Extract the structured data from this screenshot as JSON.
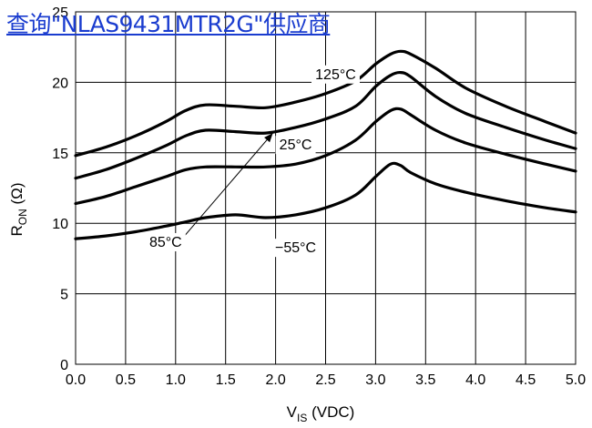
{
  "header": {
    "link_text": "查询\"NLAS9431MTR2G\"供应商"
  },
  "colors": {
    "link": "#1a3ccf",
    "curve": "#000000",
    "grid": "#000000"
  },
  "chart_data": {
    "type": "line",
    "title": "",
    "xlabel": "V",
    "xlabel_sub": "IS",
    "xlabel_unit": " (VDC)",
    "ylabel": "R",
    "ylabel_sub": "ON",
    "ylabel_unit": " (Ω)",
    "xlim": [
      0.0,
      5.0
    ],
    "ylim": [
      0,
      25
    ],
    "x_ticks": [
      "0.0",
      "0.5",
      "1.0",
      "1.5",
      "2.0",
      "2.5",
      "3.0",
      "3.5",
      "4.0",
      "4.5",
      "5.0"
    ],
    "y_ticks": [
      "0",
      "5",
      "10",
      "15",
      "20",
      "25"
    ],
    "grid": true,
    "series": [
      {
        "name": "125°C",
        "x": [
          0.0,
          0.3,
          0.6,
          0.9,
          1.1,
          1.3,
          1.6,
          1.9,
          2.2,
          2.5,
          2.8,
          3.0,
          3.15,
          3.25,
          3.35,
          3.6,
          3.9,
          4.3,
          4.7,
          5.0
        ],
        "y": [
          14.8,
          15.4,
          16.2,
          17.2,
          18.0,
          18.4,
          18.3,
          18.2,
          18.6,
          19.2,
          20.1,
          21.3,
          22.0,
          22.2,
          22.0,
          21.0,
          19.6,
          18.3,
          17.2,
          16.4
        ]
      },
      {
        "name": "85°C",
        "x": [
          0.0,
          0.3,
          0.6,
          0.9,
          1.1,
          1.3,
          1.6,
          1.9,
          2.2,
          2.5,
          2.8,
          3.0,
          3.15,
          3.25,
          3.35,
          3.6,
          3.9,
          4.3,
          4.7,
          5.0
        ],
        "y": [
          13.2,
          13.8,
          14.6,
          15.5,
          16.2,
          16.6,
          16.5,
          16.4,
          16.8,
          17.4,
          18.3,
          19.7,
          20.5,
          20.7,
          20.4,
          19.0,
          17.8,
          16.8,
          15.9,
          15.3
        ]
      },
      {
        "name": "25°C",
        "x": [
          0.0,
          0.3,
          0.6,
          0.9,
          1.1,
          1.3,
          1.6,
          1.9,
          2.2,
          2.5,
          2.8,
          3.0,
          3.15,
          3.25,
          3.35,
          3.6,
          3.9,
          4.3,
          4.7,
          5.0
        ],
        "y": [
          11.4,
          11.9,
          12.6,
          13.3,
          13.8,
          14.0,
          14.0,
          14.0,
          14.2,
          14.8,
          15.9,
          17.2,
          18.0,
          18.1,
          17.7,
          16.6,
          15.7,
          14.9,
          14.2,
          13.7
        ]
      },
      {
        "name": "-55°C",
        "x": [
          0.0,
          0.3,
          0.6,
          0.9,
          1.1,
          1.3,
          1.6,
          1.9,
          2.2,
          2.5,
          2.8,
          3.0,
          3.15,
          3.25,
          3.35,
          3.6,
          3.9,
          4.3,
          4.7,
          5.0
        ],
        "y": [
          8.9,
          9.1,
          9.4,
          9.8,
          10.1,
          10.4,
          10.6,
          10.4,
          10.6,
          11.1,
          12.0,
          13.3,
          14.2,
          14.1,
          13.6,
          12.8,
          12.2,
          11.6,
          11.1,
          10.8
        ]
      }
    ],
    "annotations": [
      {
        "text": "125°C",
        "x": 2.6,
        "y": 20.3,
        "anchor": "middle"
      },
      {
        "text": "25°C",
        "x": 2.2,
        "y": 15.3,
        "anchor": "middle"
      },
      {
        "text": "−55°C",
        "x": 2.2,
        "y": 8.0,
        "anchor": "middle"
      },
      {
        "text": "85°C",
        "x": 0.9,
        "y": 8.4,
        "anchor": "middle"
      }
    ]
  }
}
